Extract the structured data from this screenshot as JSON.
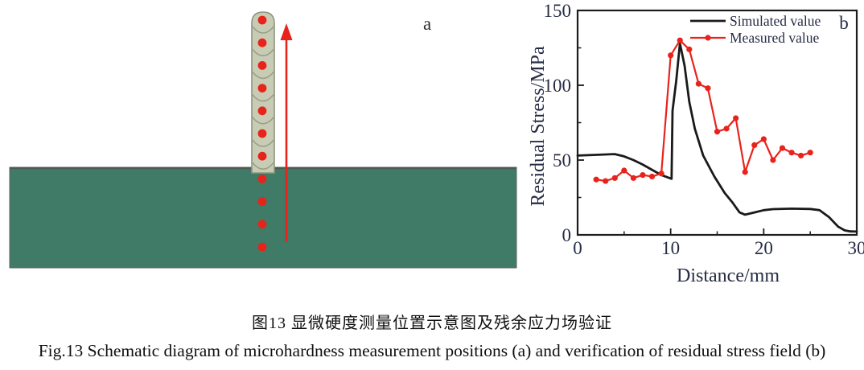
{
  "figure": {
    "captions": {
      "zh": "图13  显微硬度测量位置示意图及残余应力场验证",
      "en": "Fig.13  Schematic diagram of microhardness measurement positions (a) and verification of residual stress field (b)"
    },
    "panel_a": {
      "label": "a",
      "wall_layer_count": 7,
      "measurement_dot_count": 11,
      "dots_in_wall": 7,
      "dots_in_substrate": 4,
      "colors": {
        "substrate": "#3f7b66",
        "substrate_edge": "#4d5a52",
        "wall_fill": "#c9ccb4",
        "wall_outline": "#8e957e",
        "layer_arc": "#99a089",
        "dot": "#e8231c",
        "arrow": "#e8231c",
        "label": "#2e2e2e"
      }
    },
    "panel_b": {
      "label": "b"
    }
  },
  "chart_data": {
    "type": "line",
    "title": "",
    "xlabel": "Distance/mm",
    "ylabel": "Residual Stress/MPa",
    "xlim": [
      0,
      30
    ],
    "ylim": [
      0,
      150
    ],
    "x_major_ticks": [
      0,
      10,
      20,
      30
    ],
    "x_minor_ticks": [
      5,
      15,
      25
    ],
    "y_major_ticks": [
      0,
      50,
      100,
      150
    ],
    "y_minor_ticks": [
      25,
      75,
      125
    ],
    "grid": false,
    "legend_position": "top-right",
    "axis_text_color": "#262c44",
    "frame_color": "#1c1c1c",
    "series": [
      {
        "name": "Simulated value",
        "color": "#1a1a1a",
        "marker": false,
        "x": [
          0,
          2,
          4,
          5,
          6,
          7,
          8,
          9,
          10.1,
          10.2,
          10.6,
          11,
          11.5,
          12,
          12.6,
          13.5,
          14.7,
          15.8,
          16.6,
          17.4,
          18,
          19,
          20,
          21,
          23,
          25,
          26,
          27,
          28,
          28.7,
          29.3,
          30
        ],
        "y": [
          53,
          53.5,
          54,
          52.5,
          50,
          47,
          43.5,
          40,
          37.5,
          83,
          103,
          128,
          113,
          89,
          71,
          53,
          39,
          28,
          22,
          15,
          13.5,
          15,
          16.5,
          17.2,
          17.5,
          17.3,
          16.5,
          12,
          5.5,
          3,
          2.3,
          2.2
        ]
      },
      {
        "name": "Measured value",
        "color": "#e8231c",
        "marker": true,
        "x": [
          2,
          3,
          4,
          5,
          6,
          7,
          8,
          9,
          10,
          11,
          12,
          13,
          14,
          15,
          16,
          17,
          18,
          19,
          20,
          21,
          22,
          23,
          24,
          25
        ],
        "y": [
          37,
          36,
          38,
          43,
          38,
          40,
          39,
          41,
          120,
          130,
          124,
          101,
          98,
          69,
          71,
          78,
          42,
          60,
          64,
          50,
          58,
          55,
          53,
          55
        ]
      }
    ]
  }
}
